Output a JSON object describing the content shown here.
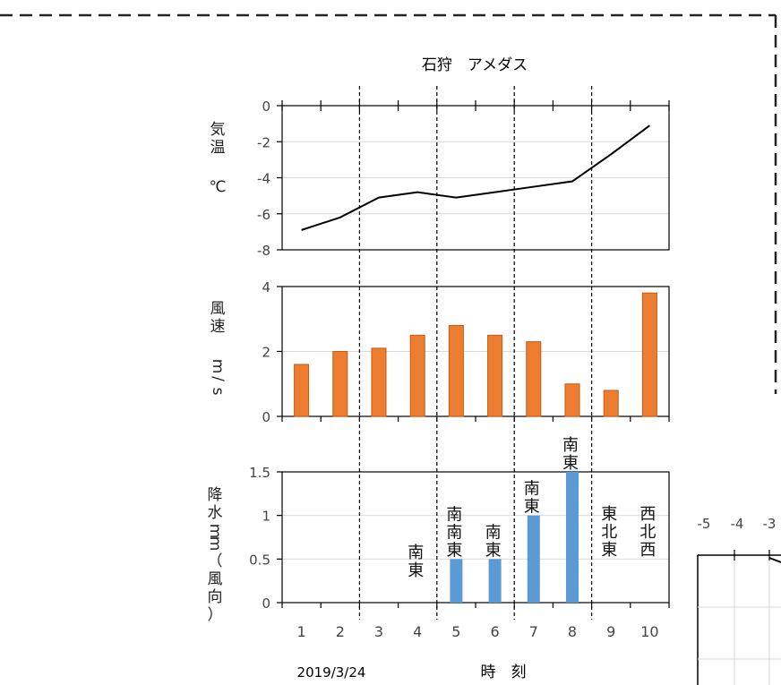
{
  "chart_data": {
    "type": "combo",
    "title": "石狩　アメダス",
    "date_label": "2019/3/24",
    "xlabel": "時　刻",
    "categories": [
      "1",
      "2",
      "3",
      "4",
      "5",
      "6",
      "7",
      "8",
      "9",
      "10"
    ],
    "panels": [
      {
        "name": "temperature",
        "type": "line",
        "ylabel": [
          "気温",
          "℃"
        ],
        "ylim": [
          -8,
          0
        ],
        "yticks": [
          0,
          -2,
          -4,
          -6,
          -8
        ],
        "values": [
          -6.9,
          -6.2,
          -5.1,
          -4.8,
          -5.1,
          -4.8,
          -4.5,
          -4.2,
          -2.7,
          -1.1
        ],
        "color": "#000000",
        "grid": true
      },
      {
        "name": "wind_speed",
        "type": "bar",
        "ylabel": [
          "風速",
          "m/s"
        ],
        "ylim": [
          0,
          4
        ],
        "yticks": [
          4,
          2,
          0
        ],
        "values": [
          1.6,
          2.0,
          2.1,
          2.5,
          2.8,
          2.5,
          2.3,
          1.0,
          0.8,
          3.8
        ],
        "color": "#ED7D31",
        "grid": true
      },
      {
        "name": "precipitation",
        "type": "bar",
        "ylabel": [
          "降水mm",
          "（風向）"
        ],
        "ylim": [
          0,
          1.5
        ],
        "yticks": [
          "1.5",
          "1",
          "0.5",
          "0"
        ],
        "values": [
          0,
          0,
          0,
          0,
          0.5,
          0.5,
          1.0,
          1.5,
          0,
          0
        ],
        "color": "#5B9BD5",
        "grid": true,
        "wind_direction_labels": [
          "",
          "",
          "",
          "南東",
          "南南東",
          "南東",
          "南東",
          "南東",
          "東北東",
          "西北西"
        ]
      }
    ],
    "dashed_separators_between": [
      [
        2,
        3
      ],
      [
        4,
        5
      ],
      [
        6,
        7
      ],
      [
        8,
        9
      ]
    ],
    "right_partial_axis": {
      "tick_labels": [
        "-5",
        "-4",
        "-3"
      ]
    }
  }
}
